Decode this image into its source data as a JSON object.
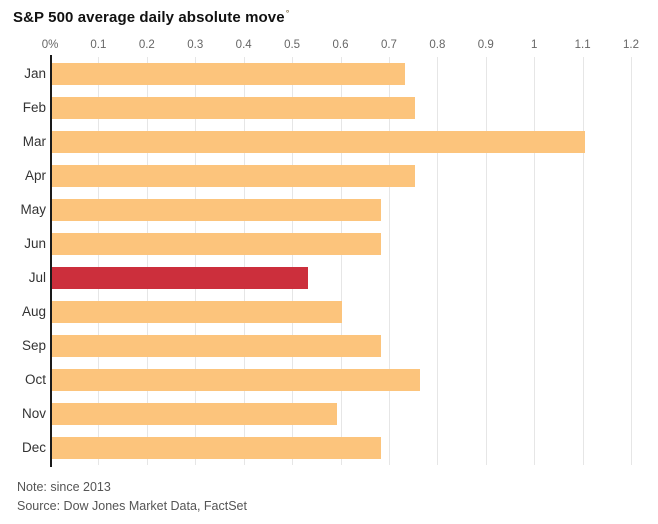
{
  "title": {
    "text": "S&P 500 average daily absolute move",
    "footnote_mark": "°"
  },
  "notes": {
    "note": "Note: since 2013",
    "source": "Source: Dow Jones Market Data, FactSet"
  },
  "colors": {
    "bar": "#fcc47c",
    "highlight": "#cc2f3c",
    "grid": "#e6e6e6",
    "axis": "#1a1a1a",
    "tick_text": "#666666",
    "label_text": "#333333",
    "note_text": "#555555"
  },
  "chart_data": {
    "type": "bar",
    "orientation": "horizontal",
    "title": "S&P 500 average daily absolute move",
    "categories": [
      "Jan",
      "Feb",
      "Mar",
      "Apr",
      "May",
      "Jun",
      "Jul",
      "Aug",
      "Sep",
      "Oct",
      "Nov",
      "Dec"
    ],
    "values": [
      0.73,
      0.75,
      1.1,
      0.75,
      0.68,
      0.68,
      0.53,
      0.6,
      0.68,
      0.76,
      0.59,
      0.68
    ],
    "highlighted_category": "Jul",
    "unit": "percent",
    "x_ticks": [
      "0%",
      "0.1",
      "0.2",
      "0.3",
      "0.4",
      "0.5",
      "0.6",
      "0.7",
      "0.8",
      "0.9",
      "1",
      "1.1",
      "1.2"
    ],
    "xlim": [
      0,
      1.2
    ],
    "grid": true,
    "legend": "none",
    "note": "since 2013",
    "source": "Dow Jones Market Data, FactSet"
  }
}
